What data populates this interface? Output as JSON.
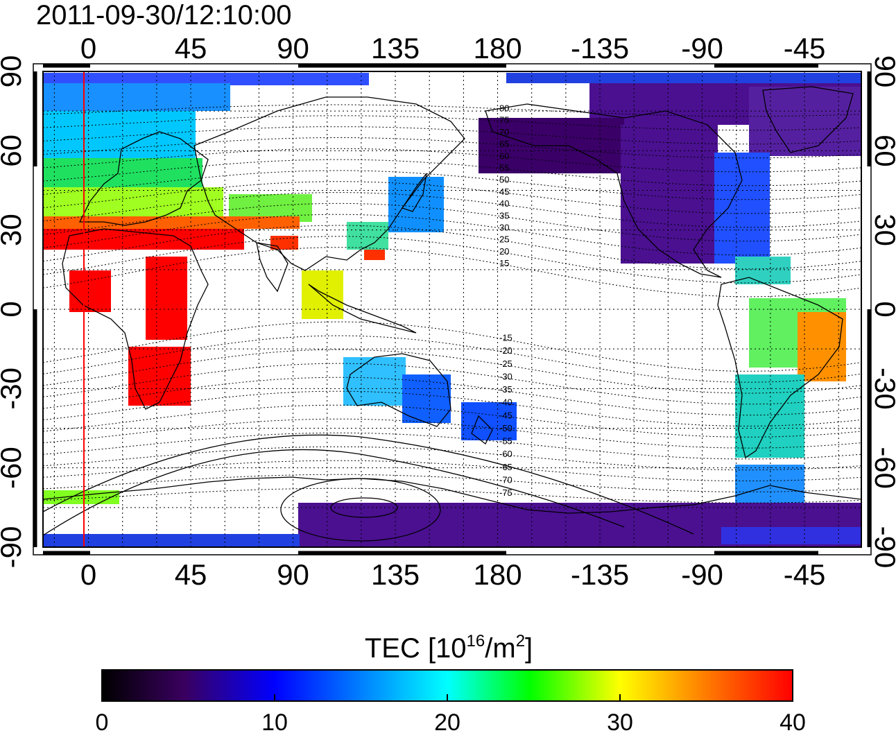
{
  "timestamp": "2011-09-30/12:10:00",
  "map": {
    "top_lon_ticks": [
      "0",
      "45",
      "90",
      "135",
      "180",
      "-135",
      "-90",
      "-45"
    ],
    "bottom_lon_ticks": [
      "0",
      "45",
      "90",
      "135",
      "180",
      "-135",
      "-90",
      "-45"
    ],
    "left_lat_ticks": [
      "90",
      "60",
      "30",
      "0",
      "-30",
      "-60",
      "-90"
    ],
    "right_lat_ticks": [
      "90",
      "60",
      "30",
      "0",
      "-30",
      "-60",
      "-90"
    ],
    "magnetic_latitude_labels": [
      "80",
      "75",
      "70",
      "65",
      "60",
      "55",
      "50",
      "45",
      "40",
      "35",
      "30",
      "25",
      "20",
      "15",
      "-15",
      "-20",
      "-25",
      "-30",
      "-35",
      "-40",
      "-45",
      "-50",
      "-55",
      "-60",
      "-65",
      "-70",
      "-75"
    ],
    "central_longitude": 180,
    "marker_line_lon": -1,
    "marker_color": "#ff0000",
    "continent_names": [
      "europe",
      "africa",
      "asia",
      "australia",
      "north-america",
      "south-america",
      "antarctica"
    ]
  },
  "colorbar": {
    "title_prefix": "TEC  [10",
    "title_exp1": "16",
    "title_mid": "/m",
    "title_exp2": "2",
    "title_suffix": "]",
    "ticks": [
      "0",
      "10",
      "20",
      "30",
      "40"
    ],
    "min": 0,
    "max": 40,
    "colors": [
      "#000000",
      "#3a0060",
      "#0000ff",
      "#00ffff",
      "#00ff00",
      "#ffff00",
      "#ff8000",
      "#ff0000"
    ]
  }
}
